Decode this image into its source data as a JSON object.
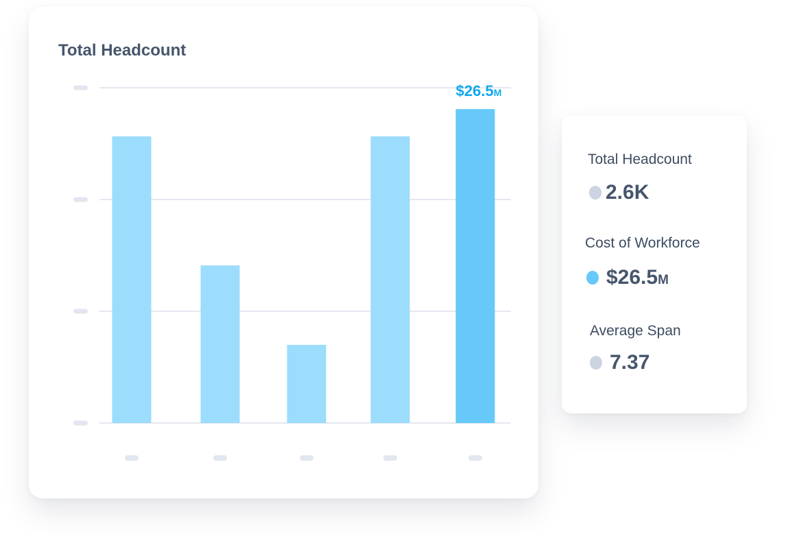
{
  "chart_data": {
    "type": "bar",
    "title": "Total Headcount",
    "categories": [
      "",
      "",
      "",
      "",
      ""
    ],
    "values": [
      24.2,
      13.3,
      6.6,
      24.2,
      26.5
    ],
    "unit": "$M",
    "ylim": [
      0,
      28.3
    ],
    "grid": true,
    "highlight_index": 4,
    "data_label": {
      "index": 4,
      "value": "$26.5",
      "suffix": "M"
    },
    "colors": {
      "bar": "#9cdcfc",
      "highlight": "#66c9fa",
      "label": "#12a9ee",
      "grid": "#e4e8f0",
      "tick_placeholder": "#e2e6ee"
    }
  },
  "summary": {
    "items": [
      {
        "label": "Total Headcount",
        "value": "2.6K",
        "suffix": "",
        "dot_color": "#cbd4e0"
      },
      {
        "label": "Cost of Workforce",
        "value": "$26.5",
        "suffix": "M",
        "dot_color": "#66c9fa"
      },
      {
        "label": "Average Span",
        "value": "7.37",
        "suffix": "",
        "dot_color": "#cbd4e0"
      }
    ]
  }
}
